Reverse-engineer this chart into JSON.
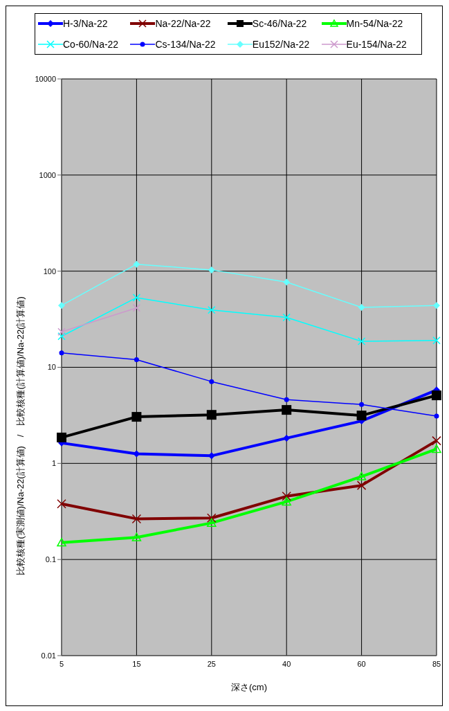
{
  "chart_data": {
    "type": "line",
    "xlabel": "深さ(cm)",
    "ylabel": "比較核種(実測値)/Na-22(計算値)　/　比較核種(計算値)/Na-22(計算値)",
    "categories": [
      "5",
      "15",
      "25",
      "40",
      "60",
      "85"
    ],
    "series": [
      {
        "name": "H-3/Na-22",
        "color": "#0000ff",
        "marker": "diamond",
        "values": [
          1.63,
          1.26,
          1.2,
          1.83,
          2.76,
          5.8
        ]
      },
      {
        "name": "Na-22/Na-22",
        "color": "#800000",
        "marker": "cross",
        "values": [
          0.38,
          0.265,
          0.27,
          0.455,
          0.59,
          1.72
        ]
      },
      {
        "name": "Sc-46/Na-22",
        "color": "#000000",
        "marker": "square",
        "values": [
          1.86,
          3.05,
          3.2,
          3.6,
          3.15,
          5.1
        ]
      },
      {
        "name": "Mn-54/Na-22",
        "color": "#00ff00",
        "marker": "triangle",
        "values": [
          0.15,
          0.17,
          0.24,
          0.4,
          0.73,
          1.41
        ]
      },
      {
        "name": "Co-60/Na-22",
        "color": "#00ffff",
        "marker": "cross",
        "values": [
          21,
          53,
          39.5,
          33,
          18.6,
          19
        ]
      },
      {
        "name": "Cs-134/Na-22",
        "color": "#0000ff",
        "marker": "circle",
        "values": [
          14.1,
          12,
          7.1,
          4.6,
          4.1,
          3.1
        ]
      },
      {
        "name": "Eu152/Na-22",
        "color": "#66ffff",
        "marker": "diamond",
        "values": [
          44,
          118,
          103,
          77,
          42,
          44
        ]
      },
      {
        "name": "Eu-154/Na-22",
        "color": "#cc99cc",
        "marker": "cross",
        "values": [
          23.4,
          41.5,
          null,
          null,
          null,
          null
        ]
      }
    ],
    "log": "y",
    "ylim": [
      0.01,
      10000
    ],
    "yticks": [
      0.01,
      0.1,
      1,
      10,
      100,
      1000,
      10000
    ],
    "grid": true,
    "legend": "top"
  }
}
